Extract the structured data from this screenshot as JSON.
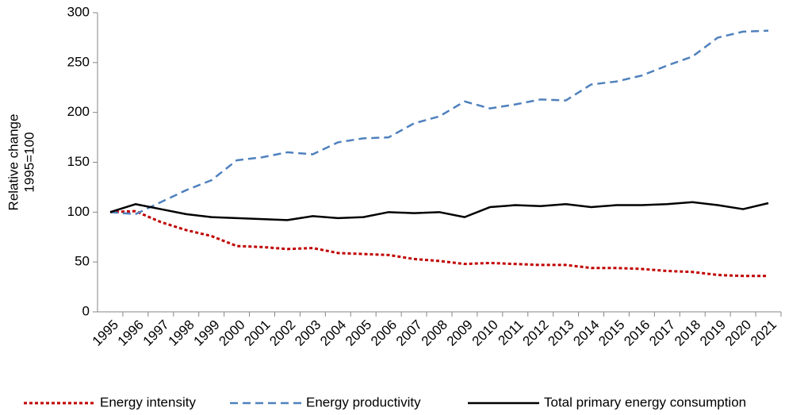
{
  "chart_data": {
    "type": "line",
    "y_label": [
      "Relative change",
      "1995=100"
    ],
    "categories": [
      "1995",
      "1996",
      "1997",
      "1998",
      "1999",
      "2000",
      "2001",
      "2002",
      "2003",
      "2004",
      "2005",
      "2006",
      "2007",
      "2008",
      "2009",
      "2010",
      "2011",
      "2012",
      "2013",
      "2014",
      "2015",
      "2016",
      "2017",
      "2018",
      "2019",
      "2020",
      "2021"
    ],
    "series": [
      {
        "name": "Energy intensity",
        "color": "#c00000",
        "line_style": "dotted",
        "values": [
          100,
          101,
          90,
          82,
          76,
          66,
          65,
          63,
          64,
          59,
          58,
          57,
          53,
          51,
          48,
          49,
          48,
          47,
          47,
          44,
          44,
          43,
          41,
          40,
          37,
          36,
          36
        ]
      },
      {
        "name": "Energy productivity",
        "color": "#4f81bd",
        "line_style": "dashed",
        "values": [
          100,
          98,
          110,
          122,
          132,
          152,
          155,
          160,
          158,
          170,
          174,
          175,
          189,
          196,
          211,
          204,
          208,
          213,
          212,
          228,
          231,
          237,
          247,
          256,
          275,
          281,
          282
        ]
      },
      {
        "name": "Total primary energy consumption",
        "color": "#000000",
        "line_style": "solid",
        "values": [
          100,
          108,
          103,
          98,
          95,
          94,
          93,
          92,
          96,
          94,
          95,
          100,
          99,
          100,
          95,
          105,
          107,
          106,
          108,
          105,
          107,
          107,
          108,
          110,
          107,
          103,
          109
        ]
      }
    ],
    "ylim": [
      0,
      300
    ],
    "yticks": [
      0,
      50,
      100,
      150,
      200,
      250,
      300
    ],
    "grid": false,
    "legend": "bottom"
  }
}
